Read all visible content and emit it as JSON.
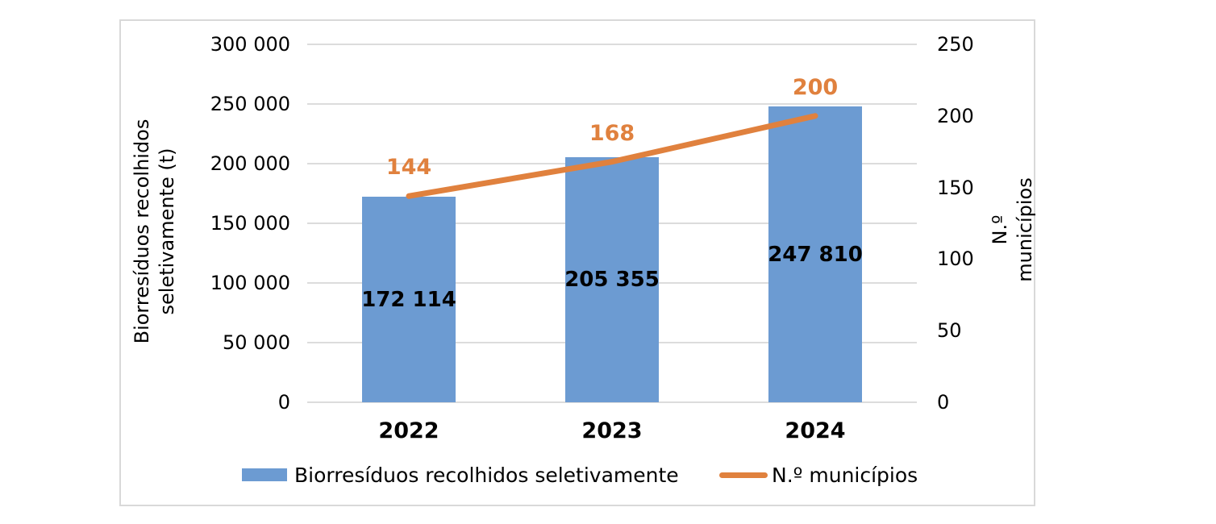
{
  "chart_data": {
    "type": "combo-bar-line",
    "categories": [
      "2022",
      "2023",
      "2024"
    ],
    "series": [
      {
        "name": "Biorresíduos recolhidos seletivamente",
        "type": "bar",
        "axis": "left",
        "color": "#6C9BD2",
        "values": [
          172114,
          205355,
          247810
        ],
        "labels": [
          "172 114",
          "205 355",
          "247 810"
        ],
        "label_color": "#000000"
      },
      {
        "name": "N.º municípios",
        "type": "line",
        "axis": "right",
        "color": "#E0813E",
        "values": [
          144,
          168,
          200
        ],
        "labels": [
          "144",
          "168",
          "200"
        ],
        "label_color": "#E0813E"
      }
    ],
    "axes": {
      "left": {
        "title": "Biorresíduos recolhidos\nseletivamente (t)",
        "min": 0,
        "max": 300000,
        "step": 50000,
        "tick_labels": [
          "0",
          "50 000",
          "100 000",
          "150 000",
          "200 000",
          "250 000",
          "300 000"
        ]
      },
      "right": {
        "title": "N.º municípios",
        "min": 0,
        "max": 250,
        "step": 50,
        "tick_labels": [
          "0",
          "50",
          "100",
          "150",
          "200",
          "250"
        ]
      },
      "x": {
        "tick_labels": [
          "2022",
          "2023",
          "2024"
        ]
      }
    },
    "grid": true,
    "legend_position": "bottom",
    "style": {
      "gridline_color": "#DCDCDC",
      "frame_border_color": "#D9D9D9",
      "background": "#FFFFFF"
    }
  },
  "legend": {
    "items": [
      {
        "label": "Biorresíduos recolhidos seletivamente",
        "swatch": "bar"
      },
      {
        "label": "N.º municípios",
        "swatch": "line"
      }
    ]
  }
}
